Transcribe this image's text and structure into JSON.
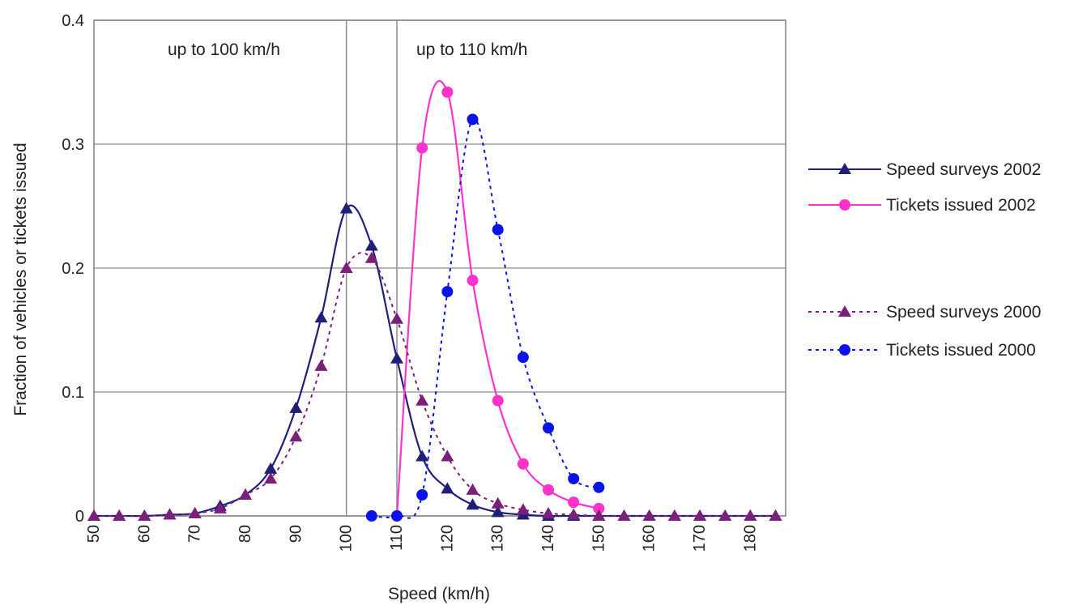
{
  "chart_data": {
    "type": "line",
    "title": "",
    "xlabel": "Speed (km/h)",
    "ylabel": "Fraction of vehicles or tickets issued",
    "xlim": [
      50,
      187
    ],
    "ylim": [
      0,
      0.4
    ],
    "x_ticks": [
      50,
      60,
      70,
      80,
      90,
      100,
      110,
      120,
      130,
      140,
      150,
      160,
      170,
      180
    ],
    "x_tick_labels": [
      "50",
      "60",
      "70",
      "80",
      "90",
      "100",
      "110",
      "120",
      "130",
      "140",
      "150",
      "160",
      "170",
      "180"
    ],
    "y_ticks": [
      0,
      0.1,
      0.2,
      0.3,
      0.4
    ],
    "y_tick_labels": [
      "0",
      "0.1",
      "0.2",
      "0.3",
      "0.4"
    ],
    "grid": true,
    "legend_position": "right",
    "annotations": [
      {
        "text": "up to 100 km/h",
        "x": 100
      },
      {
        "text": "up to 110 km/h",
        "x": 110
      }
    ],
    "series": [
      {
        "name": "Speed surveys 2002",
        "color": "#1f1f7a",
        "dashed": false,
        "marker": "triangle",
        "x": [
          50,
          55,
          60,
          65,
          70,
          75,
          80,
          85,
          90,
          95,
          100,
          105,
          110,
          115,
          120,
          125,
          130,
          135,
          140,
          145,
          150,
          155,
          160,
          165,
          170,
          175,
          180,
          185
        ],
        "values": [
          0,
          0,
          0,
          0.001,
          0.002,
          0.008,
          0.017,
          0.038,
          0.087,
          0.16,
          0.248,
          0.218,
          0.127,
          0.048,
          0.022,
          0.009,
          0.003,
          0.001,
          0,
          0,
          0,
          0,
          0,
          0,
          0,
          0,
          0,
          0
        ]
      },
      {
        "name": "Tickets issued 2002",
        "color": "#ff33cc",
        "dashed": false,
        "marker": "circle",
        "x": [
          110,
          115,
          120,
          125,
          130,
          135,
          140,
          145,
          150
        ],
        "values": [
          0,
          0.297,
          0.342,
          0.19,
          0.093,
          0.042,
          0.021,
          0.011,
          0.006
        ]
      },
      {
        "name": "Speed surveys 2000",
        "color": "#7a1f7a",
        "dashed": true,
        "marker": "triangle",
        "x": [
          50,
          55,
          60,
          65,
          70,
          75,
          80,
          85,
          90,
          95,
          100,
          105,
          110,
          115,
          120,
          125,
          130,
          135,
          140,
          145,
          150,
          155,
          160,
          165,
          170,
          175,
          180,
          185
        ],
        "values": [
          0,
          0,
          0,
          0.001,
          0.002,
          0.006,
          0.017,
          0.03,
          0.064,
          0.121,
          0.2,
          0.208,
          0.159,
          0.093,
          0.048,
          0.021,
          0.01,
          0.005,
          0.002,
          0.001,
          0,
          0,
          0,
          0,
          0,
          0,
          0,
          0
        ]
      },
      {
        "name": "Tickets issued 2000",
        "color": "#0a14e6",
        "dashed": true,
        "marker": "circle",
        "x": [
          105,
          110,
          115,
          120,
          125,
          130,
          135,
          140,
          145,
          150
        ],
        "values": [
          0,
          0,
          0.017,
          0.181,
          0.32,
          0.231,
          0.128,
          0.071,
          0.03,
          0.023
        ]
      }
    ]
  }
}
